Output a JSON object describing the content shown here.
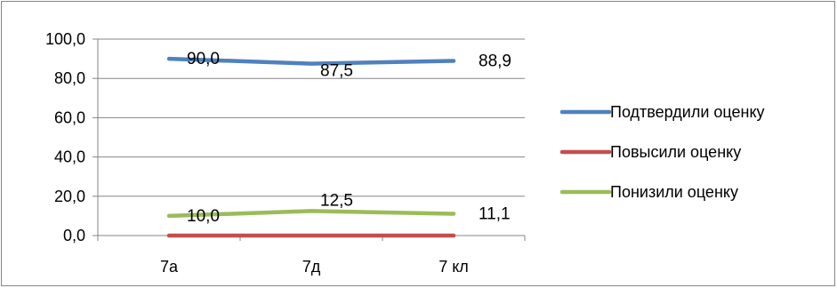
{
  "chart_data": {
    "type": "line",
    "categories": [
      "7а",
      "7д",
      "7 кл"
    ],
    "series": [
      {
        "name": "Подтвердили оценку",
        "values": [
          90.0,
          87.5,
          88.9
        ],
        "color": "#4f81bd",
        "labels": [
          "90,0",
          "87,5",
          "88,9"
        ]
      },
      {
        "name": "Повысили оценку",
        "values": [
          0,
          0,
          0
        ],
        "color": "#c0504d",
        "labels": []
      },
      {
        "name": "Понизили оценку",
        "values": [
          10.0,
          12.5,
          11.1
        ],
        "color": "#9bbb59",
        "labels": [
          "10,0",
          "12,5",
          "11,1"
        ]
      }
    ],
    "y_ticks": [
      "0,0",
      "20,0",
      "40,0",
      "60,0",
      "80,0",
      "100,0"
    ],
    "ylim": [
      0,
      100
    ],
    "grid": "horizontal",
    "legend_position": "right"
  }
}
